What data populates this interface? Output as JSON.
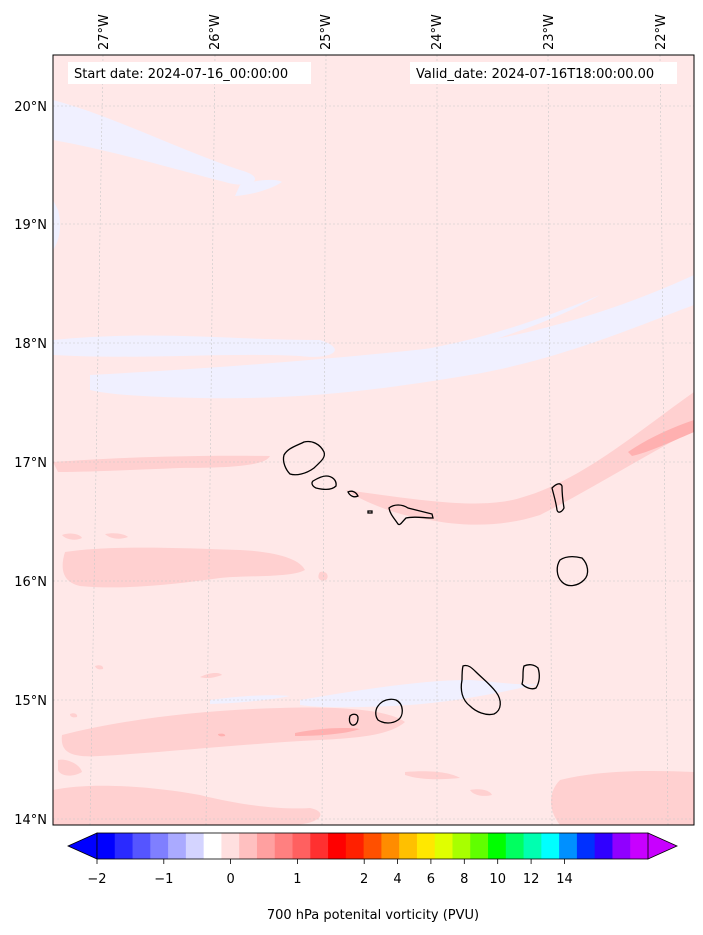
{
  "header": {
    "start_date": "Start date: 2024-07-16_00:00:00",
    "valid_date": "Valid_date: 2024-07-16T18:00:00.00"
  },
  "map": {
    "lon_labels": [
      "27°W",
      "26°W",
      "25°W",
      "24°W",
      "23°W",
      "22°W"
    ],
    "lat_labels": [
      "20°N",
      "19°N",
      "18°N",
      "17°N",
      "16°N",
      "15°N",
      "14°N"
    ],
    "islands": [
      "santo-antao",
      "sao-vicente",
      "santa-luzia",
      "branco",
      "sao-nicolau",
      "sal",
      "boa-vista",
      "brava",
      "fogo",
      "santiago",
      "maio"
    ]
  },
  "colorbar": {
    "label": "700 hPa potenital vorticity (PVU)",
    "tick_labels": [
      "−2",
      "−1",
      "0",
      "1",
      "2",
      "4",
      "6",
      "8",
      "10",
      "12",
      "14"
    ],
    "colors": [
      "#0000ff",
      "#2a2aff",
      "#5555ff",
      "#7f7fff",
      "#aaaaff",
      "#d4d4ff",
      "#ffffff",
      "#ffe0e0",
      "#ffc0c0",
      "#ffa0a0",
      "#ff8080",
      "#ff6060",
      "#ff3030",
      "#ff0000",
      "#ff2000",
      "#ff5000",
      "#ff8c00",
      "#ffc000",
      "#ffe800",
      "#e0ff00",
      "#a8ff00",
      "#60ff00",
      "#00ff00",
      "#00ff60",
      "#00ffb0",
      "#00ffff",
      "#0090ff",
      "#0030ff",
      "#3000ff",
      "#9000ff",
      "#c800ff"
    ]
  }
}
